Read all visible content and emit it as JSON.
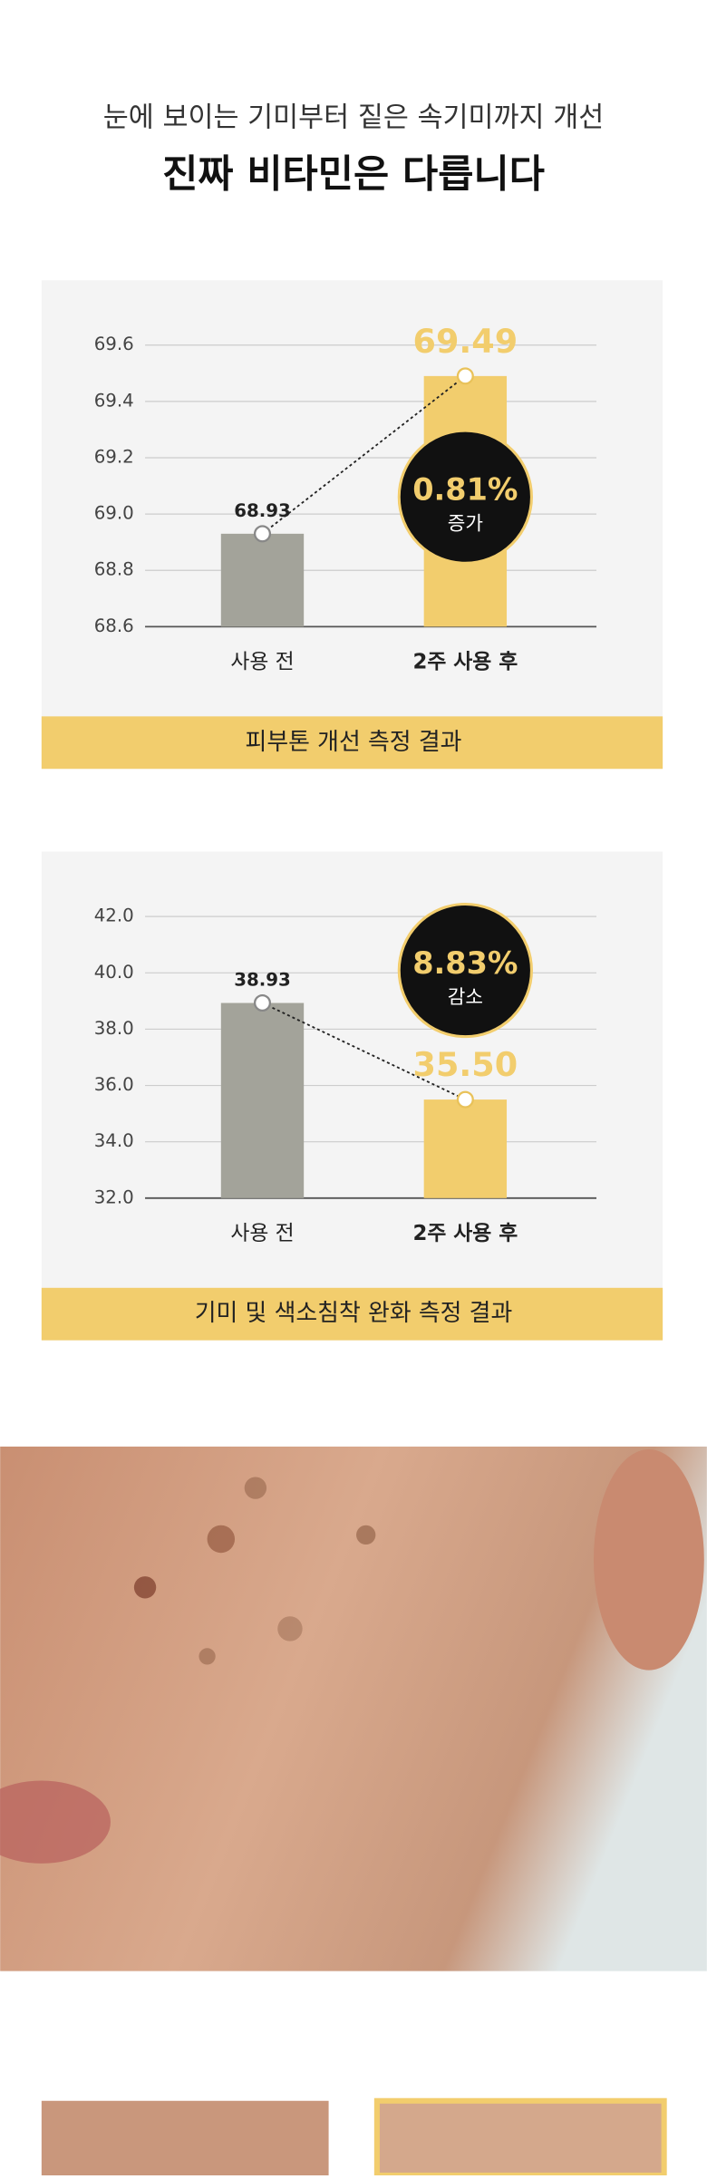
{
  "header": {
    "subtitle": "눈에 보이는 기미부터 짙은 속기미까지 개선",
    "title": "진짜 비타민은 다릅니다"
  },
  "chart_data": [
    {
      "type": "bar",
      "categories": [
        "사용 전",
        "2주 사용 후"
      ],
      "values": [
        68.93,
        69.49
      ],
      "colors": [
        "#a3a39a",
        "#f2cd6d"
      ],
      "ylim": [
        68.6,
        69.6
      ],
      "yticks": [
        68.6,
        68.8,
        {
          "value": 69,
          "label": "69.0"
        },
        69.2,
        69.4,
        69.6
      ],
      "grid": true,
      "badge": {
        "value": "0.81%",
        "label": "증가"
      },
      "caption": "피부톤 개선 측정 결과"
    },
    {
      "type": "bar",
      "categories": [
        "사용 전",
        "2주 사용 후"
      ],
      "values": [
        38.93,
        35.5
      ],
      "value_labels": [
        "38.93",
        "35.50"
      ],
      "colors": [
        "#a3a39a",
        "#f2cd6d"
      ],
      "ylim": [
        32,
        42
      ],
      "yticks": [
        {
          "value": 32,
          "label": "32.0"
        },
        {
          "value": 34,
          "label": "34.0"
        },
        {
          "value": 36,
          "label": "36.0"
        },
        {
          "value": 38,
          "label": "38.0"
        },
        {
          "value": 40,
          "label": "40.0"
        },
        {
          "value": 42,
          "label": "42.0"
        }
      ],
      "grid": true,
      "badge": {
        "value": "8.83%",
        "label": "감소"
      },
      "caption": "기미 및 색소침착 완화 측정 결과"
    }
  ]
}
